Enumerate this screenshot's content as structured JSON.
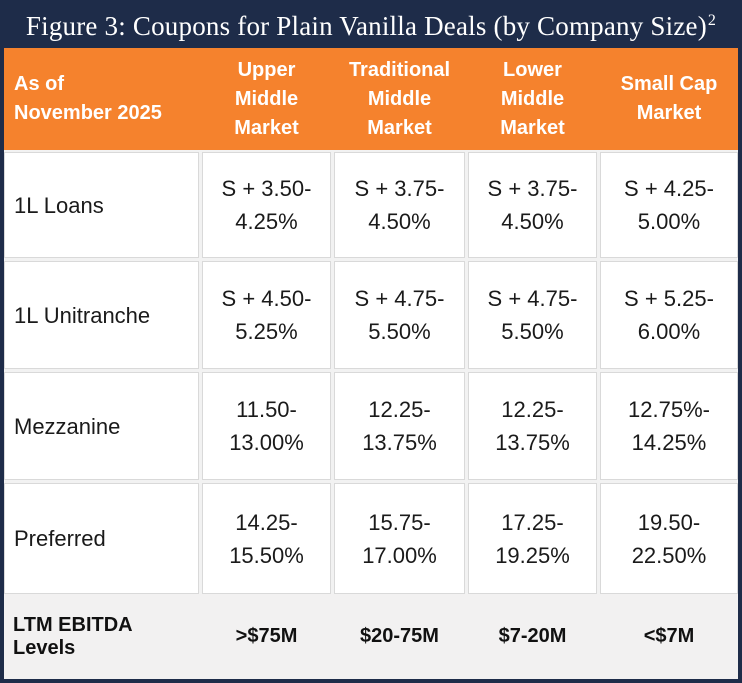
{
  "title": {
    "text": "Figure 3: Coupons for Plain Vanilla Deals (by Company Size)",
    "superscript": "2"
  },
  "header": {
    "corner": "As of\nNovember 2025",
    "columns": [
      "Upper\nMiddle\nMarket",
      "Traditional\nMiddle\nMarket",
      "Lower\nMiddle\nMarket",
      "Small Cap\nMarket"
    ]
  },
  "rows": [
    {
      "label": "1L Loans",
      "values": [
        "S + 3.50-\n4.25%",
        "S + 3.75-\n4.50%",
        "S + 3.75-\n4.50%",
        "S + 4.25-\n5.00%"
      ]
    },
    {
      "label": "1L Unitranche",
      "values": [
        "S + 4.50-\n5.25%",
        "S + 4.75-\n5.50%",
        "S + 4.75-\n5.50%",
        "S + 5.25-\n6.00%"
      ]
    },
    {
      "label": "Mezzanine",
      "values": [
        "11.50-\n13.00%",
        "12.25-\n13.75%",
        "12.25-\n13.75%",
        "12.75%-\n14.25%"
      ]
    },
    {
      "label": "Preferred",
      "values": [
        "14.25-\n15.50%",
        "15.75-\n17.00%",
        "17.25-\n19.25%",
        "19.50-\n22.50%"
      ]
    }
  ],
  "footer": {
    "label": "LTM EBITDA Levels",
    "values": [
      ">$75M",
      "$20-75M",
      "$7-20M",
      "<$7M"
    ]
  },
  "colors": {
    "navy": "#1e2c49",
    "orange": "#f5822d",
    "footer_background": "#f2f1f1",
    "cell_border": "#d9d9d9"
  }
}
